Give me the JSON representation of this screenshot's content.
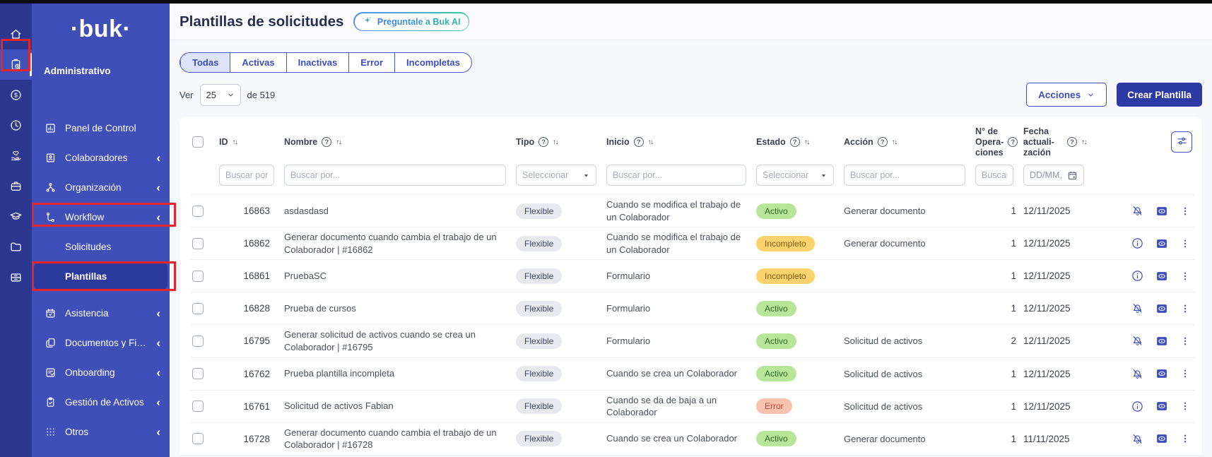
{
  "colors": {
    "accent": "#3d4dc0",
    "accent_deep": "#2d3aa4",
    "rail_bg": "#2c3890",
    "sidebar_bg": "#3f4fb7",
    "active_item_bg": "#2c3a9e",
    "page_bg": "#f7f8fc",
    "annotation": "#e8242b",
    "activo_bg": "#b7e69b",
    "incompleto_bg": "#fbd26e",
    "error_bg": "#f9c2ae",
    "tipo_bg": "#e8e9ef"
  },
  "rail": {
    "items": [
      {
        "icon": "home-icon",
        "name": "rail-item-home"
      },
      {
        "icon": "clipboard-clock-icon",
        "name": "rail-item-administrativo",
        "active": true
      },
      {
        "icon": "money-icon",
        "name": "rail-item-remuneraciones"
      },
      {
        "icon": "clock-icon",
        "name": "rail-item-tiempo"
      },
      {
        "icon": "hand-heart-icon",
        "name": "rail-item-beneficios"
      },
      {
        "icon": "briefcase-icon",
        "name": "rail-item-talento"
      },
      {
        "icon": "graduation-cap-icon",
        "name": "rail-item-capacitacion"
      },
      {
        "icon": "folder-icon",
        "name": "rail-item-carpetas"
      },
      {
        "icon": "storage-icon",
        "name": "rail-item-activos"
      }
    ]
  },
  "sidebar": {
    "logo": "·buk·",
    "section_label": "Administrativo",
    "items": [
      {
        "label": "Panel de Control",
        "icon": "panel-icon",
        "name": "sidebar-item-panel-de-control",
        "chevron": false
      },
      {
        "label": "Colaboradores",
        "icon": "idcard-icon",
        "name": "sidebar-item-colaboradores",
        "chevron": true
      },
      {
        "label": "Organización",
        "icon": "org-icon",
        "name": "sidebar-item-organizacion",
        "chevron": true
      },
      {
        "label": "Workflow",
        "icon": "workflow-icon",
        "name": "sidebar-item-workflow",
        "chevron": true
      },
      {
        "label": "Solicitudes",
        "name": "sidebar-item-solicitudes",
        "sub": true
      },
      {
        "label": "Plantillas",
        "name": "sidebar-item-plantillas",
        "sub": true,
        "active": true
      },
      {
        "label": "Asistencia",
        "icon": "calendar-check-icon",
        "name": "sidebar-item-asistencia",
        "chevron": true
      },
      {
        "label": "Documentos y Firma",
        "icon": "documents-icon",
        "name": "sidebar-item-documentos-y-firma",
        "chevron": true
      },
      {
        "label": "Onboarding",
        "icon": "onboarding-icon",
        "name": "sidebar-item-onboarding",
        "chevron": true
      },
      {
        "label": "Gestión de Activos",
        "icon": "clipboard-icon",
        "name": "sidebar-item-gestion-de-activos",
        "chevron": true
      },
      {
        "label": "Otros",
        "icon": "grid-icon",
        "name": "sidebar-item-otros",
        "chevron": true
      }
    ]
  },
  "header": {
    "title": "Plantillas de solicitudes",
    "ai_button": "Preguntale a Buk AI"
  },
  "tabs": [
    {
      "label": "Todas",
      "name": "tab-todas",
      "active": true
    },
    {
      "label": "Activas",
      "name": "tab-activas"
    },
    {
      "label": "Inactivas",
      "name": "tab-inactivas"
    },
    {
      "label": "Error",
      "name": "tab-error"
    },
    {
      "label": "Incompletas",
      "name": "tab-incompletas"
    }
  ],
  "list_controls": {
    "ver_label": "Ver",
    "page_size": "25",
    "total_label": "de 519",
    "acciones_label": "Acciones",
    "crear_label": "Crear Plantilla"
  },
  "table": {
    "columns": [
      {
        "label": "ID",
        "name": "col-id",
        "help": false,
        "sort": true
      },
      {
        "label": "Nombre",
        "name": "col-nombre",
        "help": true,
        "sort": true
      },
      {
        "label": "Tipo",
        "name": "col-tipo",
        "help": true,
        "sort": true
      },
      {
        "label": "Inicio",
        "name": "col-inicio",
        "help": true,
        "sort": true
      },
      {
        "label": "Estado",
        "name": "col-estado",
        "help": true,
        "sort": true
      },
      {
        "label": "Acción",
        "name": "col-accion",
        "help": true,
        "sort": true
      },
      {
        "label": "N° de Opera-ciones",
        "name": "col-operaciones",
        "help": true,
        "sort": true
      },
      {
        "label": "Fecha actuali-zación",
        "name": "col-fecha",
        "help": true,
        "sort": true
      }
    ],
    "filters": [
      {
        "type": "text",
        "placeholder": "Buscar por.",
        "name": "filter-id"
      },
      {
        "type": "text",
        "placeholder": "Buscar por...",
        "name": "filter-nombre"
      },
      {
        "type": "select",
        "placeholder": "Seleccionar",
        "name": "filter-tipo"
      },
      {
        "type": "text",
        "placeholder": "Buscar por...",
        "name": "filter-inicio"
      },
      {
        "type": "select",
        "placeholder": "Seleccionar",
        "name": "filter-estado"
      },
      {
        "type": "text",
        "placeholder": "Buscar por...",
        "name": "filter-accion"
      },
      {
        "type": "text",
        "placeholder": "Buscar por..",
        "name": "filter-operaciones"
      },
      {
        "type": "date",
        "placeholder": "DD/MM,",
        "name": "filter-fecha"
      }
    ],
    "rows": [
      {
        "id": "16863",
        "nombre": "asdasdasd",
        "tipo": "Flexible",
        "inicio": "Cuando se modifica el trabajo de un Colaborador",
        "estado": "Activo",
        "estado_type": "activo",
        "accion": "Generar documento",
        "operaciones": "1",
        "fecha": "12/11/2025",
        "status_icon": "bell-slash-icon"
      },
      {
        "id": "16862",
        "nombre": "Generar documento cuando cambia el trabajo de un Colaborador | #16862",
        "tipo": "Flexible",
        "inicio": "Cuando se modifica el trabajo de un Colaborador",
        "estado": "Incompleto",
        "estado_type": "incompleto",
        "accion": "Generar documento",
        "operaciones": "1",
        "fecha": "12/11/2025",
        "status_icon": "info-icon"
      },
      {
        "id": "16861",
        "nombre": "PruebaSC",
        "tipo": "Flexible",
        "inicio": "Formulario",
        "estado": "Incompleto",
        "estado_type": "incompleto",
        "accion": "",
        "operaciones": "1",
        "fecha": "12/11/2025",
        "status_icon": "info-icon"
      },
      {
        "id": "16828",
        "nombre": "Prueba de cursos",
        "tipo": "Flexible",
        "inicio": "Formulario",
        "estado": "Activo",
        "estado_type": "activo",
        "accion": "",
        "operaciones": "1",
        "fecha": "12/11/2025",
        "status_icon": "bell-slash-icon"
      },
      {
        "id": "16795",
        "nombre": "Generar solicitud de activos cuando se crea un Colaborador | #16795",
        "tipo": "Flexible",
        "inicio": "Formulario",
        "estado": "Activo",
        "estado_type": "activo",
        "accion": "Solicitud de activos",
        "operaciones": "2",
        "fecha": "12/11/2025",
        "status_icon": "bell-slash-icon"
      },
      {
        "id": "16762",
        "nombre": "Prueba plantilla incompleta",
        "tipo": "Flexible",
        "inicio": "Cuando se crea un Colaborador",
        "estado": "Activo",
        "estado_type": "activo",
        "accion": "Solicitud de activos",
        "operaciones": "1",
        "fecha": "12/11/2025",
        "status_icon": "bell-slash-icon"
      },
      {
        "id": "16761",
        "nombre": "Solicitud de activos Fabian",
        "tipo": "Flexible",
        "inicio": "Cuando se da de baja a un Colaborador",
        "estado": "Error",
        "estado_type": "error",
        "accion": "Solicitud de activos",
        "operaciones": "1",
        "fecha": "12/11/2025",
        "status_icon": "info-icon"
      },
      {
        "id": "16728",
        "nombre": "Generar documento cuando cambia el trabajo de un Colaborador | #16728",
        "tipo": "Flexible",
        "inicio": "Cuando se crea un Colaborador",
        "estado": "Activo",
        "estado_type": "activo",
        "accion": "Generar documento",
        "operaciones": "1",
        "fecha": "11/11/2025",
        "status_icon": "bell-slash-icon"
      }
    ]
  }
}
